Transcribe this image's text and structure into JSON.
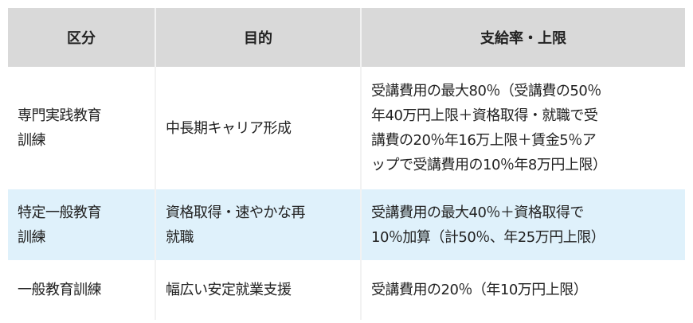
{
  "table": {
    "headers": [
      "区分",
      "目的",
      "支給率・上限"
    ],
    "rows": [
      {
        "category": [
          "専門実践教育",
          "訓練"
        ],
        "purpose": [
          "中長期キャリア形成"
        ],
        "rate": [
          "受講費用の最大80％（受講費の50％",
          "年40万円上限＋資格取得・就職で受",
          "講費の20％年16万上限＋賃金5％ア",
          "ップで受講費用の10％年8万円上限）"
        ]
      },
      {
        "category": [
          "特定一般教育",
          "訓練"
        ],
        "purpose": [
          "資格取得・速やかな再",
          "就職"
        ],
        "rate": [
          "受講費用の最大40％＋資格取得で",
          "10％加算（計50％、年25万円上限）"
        ]
      },
      {
        "category": [
          "一般教育訓練"
        ],
        "purpose": [
          "幅広い安定就業支援"
        ],
        "rate": [
          "受講費用の20％（年10万円上限）"
        ]
      }
    ],
    "colors": {
      "header_bg": "#d9d9d9",
      "highlight_row_bg": "#dff1fb"
    }
  }
}
